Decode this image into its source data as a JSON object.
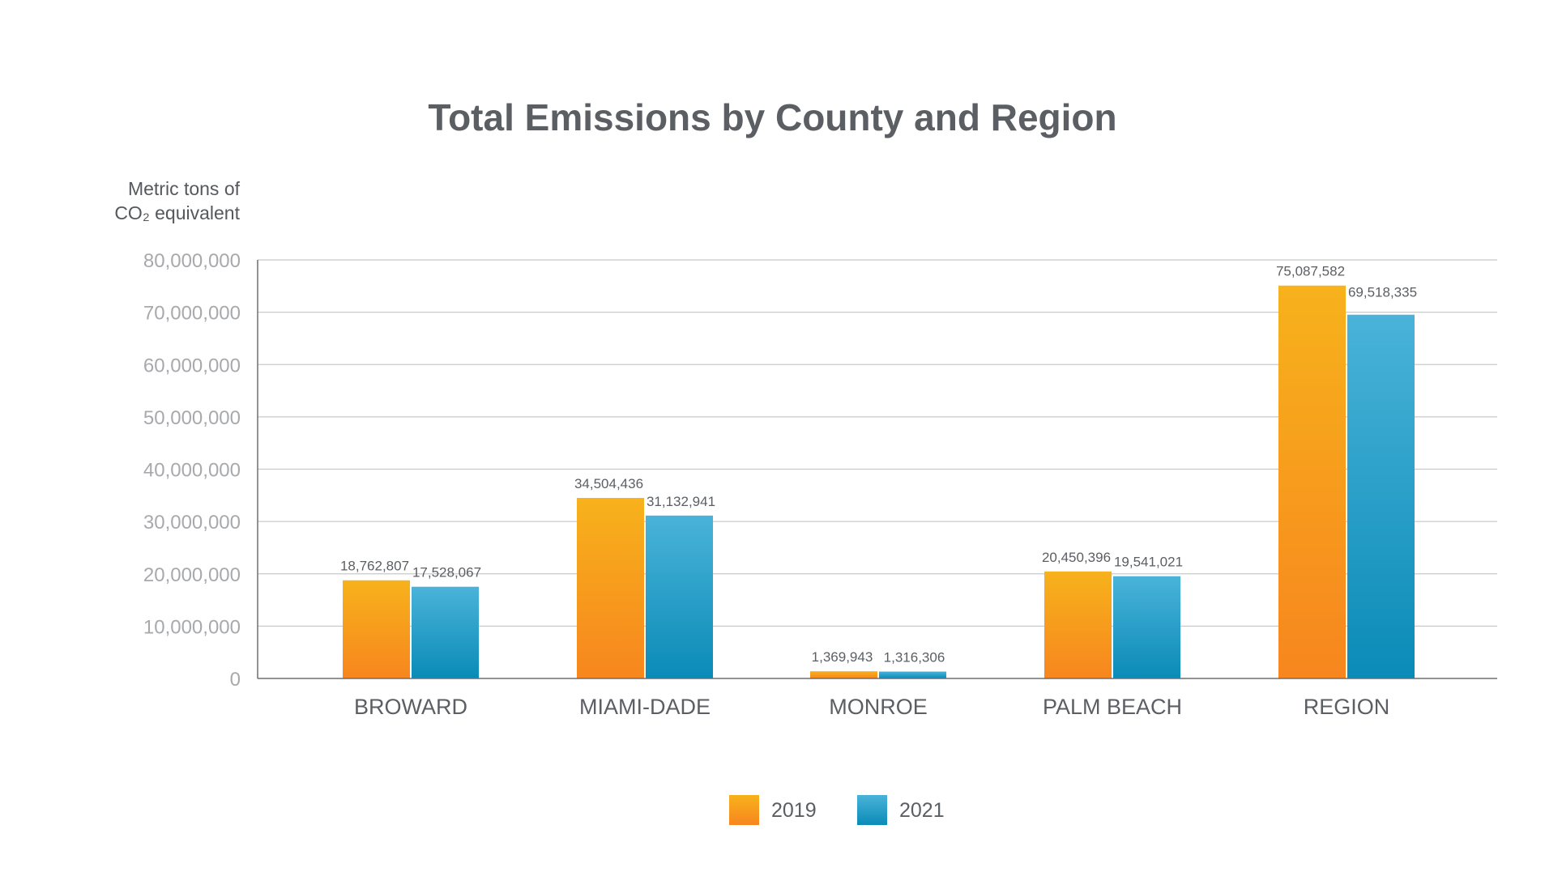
{
  "chart_data": {
    "type": "bar",
    "title": "Total Emissions by County and Region",
    "ylabel_lines": [
      "Metric tons of",
      "CO₂ equivalent"
    ],
    "xlabel": "",
    "categories": [
      "BROWARD",
      "MIAMI-DADE",
      "MONROE",
      "PALM BEACH",
      "REGION"
    ],
    "series": [
      {
        "name": "2019",
        "values": [
          18762807,
          34504436,
          1369943,
          20450396,
          75087582
        ],
        "labels": [
          "18,762,807",
          "34,504,436",
          "1,369,943",
          "20,450,396",
          "75,087,582"
        ],
        "color_top": "#f7b21c",
        "color_bottom": "#f7861e"
      },
      {
        "name": "2021",
        "values": [
          17528067,
          31132941,
          1316306,
          19541021,
          69518335
        ],
        "labels": [
          "17,528,067",
          "31,132,941",
          "1,316,306",
          "19,541,021",
          "69,518,335"
        ],
        "color_top": "#4ab3d9",
        "color_bottom": "#0a8bb7"
      }
    ],
    "ylim": [
      0,
      80000000
    ],
    "yticks": [
      0,
      10000000,
      20000000,
      30000000,
      40000000,
      50000000,
      60000000,
      70000000,
      80000000
    ],
    "ytick_labels": [
      "0",
      "10,000,000",
      "20,000,000",
      "30,000,000",
      "40,000,000",
      "50,000,000",
      "60,000,000",
      "70,000,000",
      "80,000,000"
    ],
    "grid": true,
    "legend_position": "bottom-center"
  }
}
